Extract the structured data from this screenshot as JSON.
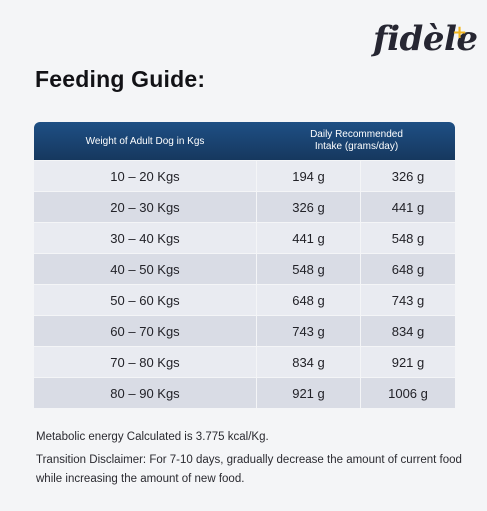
{
  "brand": {
    "logo_text": "fidèle",
    "logo_plus": "+",
    "accent_color": "#f2b61f"
  },
  "title": "Feeding Guide:",
  "table": {
    "header_left": "Weight of Adult Dog in Kgs",
    "header_right_line1": "Daily Recommended",
    "header_right_line2": "Intake (grams/day)",
    "header_color": "#1b456f",
    "rows": [
      {
        "weight": "10 – 20 Kgs",
        "low": "194 g",
        "high": "326 g"
      },
      {
        "weight": "20 – 30 Kgs",
        "low": "326 g",
        "high": "441 g"
      },
      {
        "weight": "30 – 40 Kgs",
        "low": "441 g",
        "high": "548 g"
      },
      {
        "weight": "40 – 50 Kgs",
        "low": "548 g",
        "high": "648 g"
      },
      {
        "weight": "50 – 60 Kgs",
        "low": "648 g",
        "high": "743 g"
      },
      {
        "weight": "60 – 70 Kgs",
        "low": "743 g",
        "high": "834 g"
      },
      {
        "weight": "70 – 80 Kgs",
        "low": "834 g",
        "high": "921 g"
      },
      {
        "weight": "80 – 90 Kgs",
        "low": "921 g",
        "high": "1006 g"
      }
    ]
  },
  "notes": {
    "metabolic": "Metabolic energy Calculated is 3.775 kcal/Kg.",
    "transition": "Transition Disclaimer: For 7-10 days, gradually decrease the amount of current food while increasing the amount of new food."
  }
}
